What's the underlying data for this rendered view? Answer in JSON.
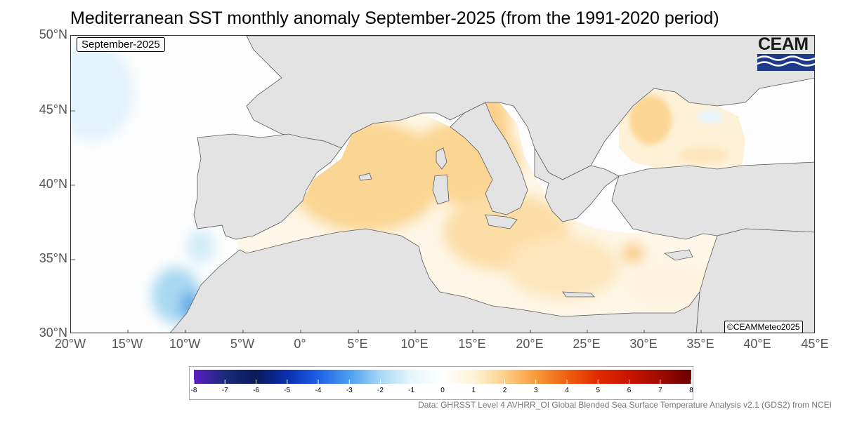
{
  "title": "Mediterranean SST monthly anomaly September-2025 (from the 1991-2020 period)",
  "period_label": "September-2025",
  "logo_text": "CEAM",
  "copyright": "©CEAMMeteo2025",
  "source": "Data: GHRSST Level 4 AVHRR_OI Global Blended Sea Surface Temperature Analysis v2.1 (GDS2) from NCEI",
  "axes": {
    "lat_ticks": [
      "50°N",
      "45°N",
      "40°N",
      "35°N",
      "30°N"
    ],
    "lon_ticks": [
      "20°W",
      "15°W",
      "10°W",
      "5°W",
      "0°",
      "5°E",
      "10°E",
      "15°E",
      "20°E",
      "25°E",
      "30°E",
      "35°E",
      "40°E",
      "45°E"
    ]
  },
  "colorbar": {
    "ticks": [
      "-8",
      "-7",
      "-6",
      "-5",
      "-4",
      "-3",
      "-2",
      "-1",
      "0",
      "1",
      "2",
      "3",
      "4",
      "5",
      "6",
      "7",
      "8"
    ],
    "colors": [
      "#5a1fc0",
      "#1a2a7a",
      "#0a1a5a",
      "#0a2fb0",
      "#1f5fe8",
      "#4a9ff0",
      "#a8d8f5",
      "#e6f6fb",
      "#ffffff",
      "#fff3d6",
      "#fcd08a",
      "#f99a3a",
      "#f06010",
      "#e02a00",
      "#c81400",
      "#a00a00",
      "#6a0000"
    ]
  },
  "colors": {
    "land": "#e3e3e3",
    "border": "#5a5a5a",
    "ocean_neutral": "#fdfdfd",
    "warm_light": "#fde9c4",
    "warm": "#fbd593",
    "cool": "#a9d8f2",
    "cool_strong": "#5aa8e8",
    "logo_blue": "#1f3a8a"
  }
}
